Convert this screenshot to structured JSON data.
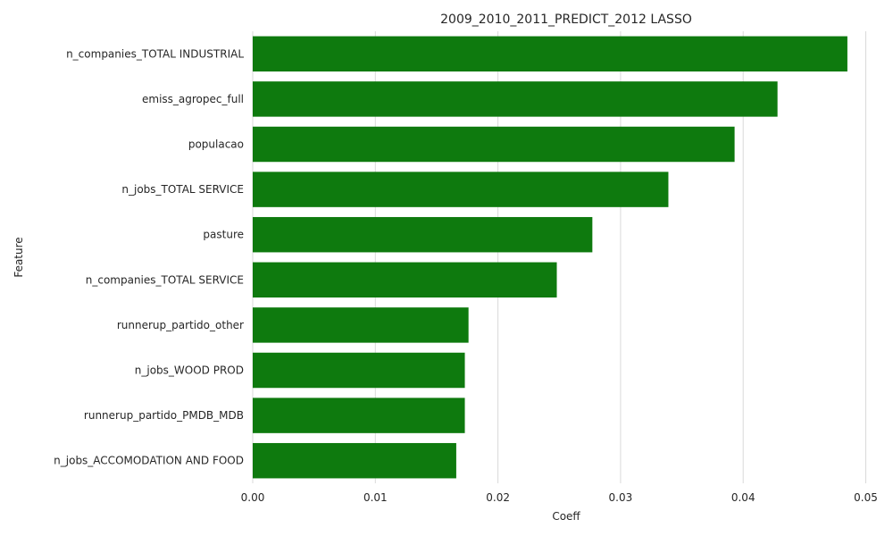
{
  "chart_data": {
    "type": "bar",
    "orientation": "horizontal",
    "title": "2009_2010_2011_PREDICT_2012 LASSO",
    "xlabel": "Coeff",
    "ylabel": "Feature",
    "xlim": [
      0,
      0.0512
    ],
    "xticks": [
      0,
      0.01,
      0.02,
      0.03,
      0.04,
      0.05
    ],
    "xtick_labels": [
      "0.00",
      "0.01",
      "0.02",
      "0.03",
      "0.04",
      "0.05"
    ],
    "grid": true,
    "bar_color": "#0e7a0e",
    "categories": [
      "n_companies_TOTAL INDUSTRIAL",
      "emiss_agropec_full",
      "populacao",
      "n_jobs_TOTAL SERVICE",
      "pasture",
      "n_companies_TOTAL SERVICE",
      "runnerup_partido_other",
      "n_jobs_WOOD PROD",
      "runnerup_partido_PMDB_MDB",
      "n_jobs_ACCOMODATION AND FOOD"
    ],
    "values": [
      0.0485,
      0.0428,
      0.0393,
      0.0339,
      0.0277,
      0.0248,
      0.0176,
      0.0173,
      0.0173,
      0.0166
    ]
  }
}
